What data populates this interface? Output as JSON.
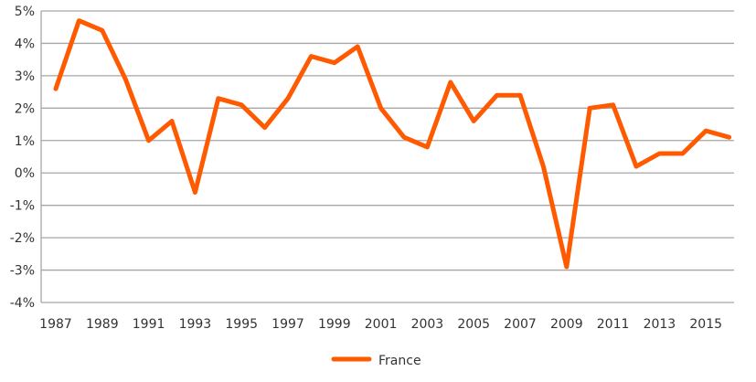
{
  "chart_data": {
    "type": "line",
    "title": "",
    "xlabel": "",
    "ylabel": "",
    "x": [
      1987,
      1988,
      1989,
      1990,
      1991,
      1992,
      1993,
      1994,
      1995,
      1996,
      1997,
      1998,
      1999,
      2000,
      2001,
      2002,
      2003,
      2004,
      2005,
      2006,
      2007,
      2008,
      2009,
      2010,
      2011,
      2012,
      2013,
      2014,
      2015,
      2016
    ],
    "x_tick_labels": [
      "1987",
      "1989",
      "1991",
      "1993",
      "1995",
      "1997",
      "1999",
      "2001",
      "2003",
      "2005",
      "2007",
      "2009",
      "2011",
      "2013",
      "2015"
    ],
    "y_tick_values": [
      5,
      4,
      3,
      2,
      1,
      0,
      -1,
      -2,
      -3,
      -4
    ],
    "y_tick_labels": [
      "5%",
      "4%",
      "3%",
      "2%",
      "1%",
      "0%",
      "-1%",
      "-2%",
      "-3%",
      "-4%"
    ],
    "ylim": [
      -4,
      5
    ],
    "grid": true,
    "legend": "bottom-center",
    "series": [
      {
        "name": "France",
        "color": "#FF5A00",
        "values": [
          2.6,
          4.7,
          4.4,
          2.9,
          1.0,
          1.6,
          -0.6,
          2.3,
          2.1,
          1.4,
          2.3,
          3.6,
          3.4,
          3.9,
          2.0,
          1.1,
          0.8,
          2.8,
          1.6,
          2.4,
          2.4,
          0.2,
          -2.9,
          2.0,
          2.1,
          0.2,
          0.6,
          0.6,
          1.3,
          1.1
        ]
      }
    ]
  }
}
